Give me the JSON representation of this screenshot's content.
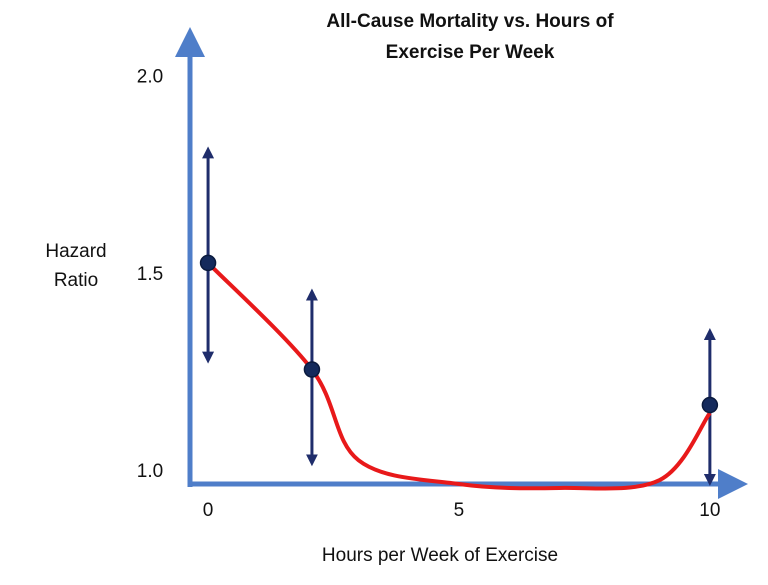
{
  "chart_data": {
    "type": "scatter",
    "title": [
      "All-Cause Mortality vs. Hours of",
      "Exercise Per Week"
    ],
    "x_label": "Hours per Week of Exercise",
    "y_label": [
      "Hazard",
      "Ratio"
    ],
    "xlim": [
      -0.36,
      10.7
    ],
    "ylim": [
      0.97,
      2.12
    ],
    "xticks": [
      0,
      5,
      10
    ],
    "yticks": [
      {
        "value": 1.0,
        "label": "1.0"
      },
      {
        "value": 1.5,
        "label": "1.5"
      },
      {
        "value": 2.0,
        "label": "2.0"
      }
    ],
    "points": {
      "x": [
        0,
        2.07,
        10
      ],
      "values": [
        1.53,
        1.26,
        1.17
      ],
      "lower": [
        1.28,
        1.02,
        0.97
      ],
      "upper": [
        1.82,
        1.46,
        1.36
      ],
      "color": "#142a5c",
      "error_color": "#1f2d6b"
    },
    "curve": {
      "x": [
        0,
        2.07,
        3,
        5,
        7,
        9,
        10
      ],
      "values": [
        1.53,
        1.26,
        1.03,
        0.97,
        0.96,
        0.98,
        1.15
      ],
      "color": "#e8191a"
    },
    "axis_color": "#4f7ec9"
  }
}
